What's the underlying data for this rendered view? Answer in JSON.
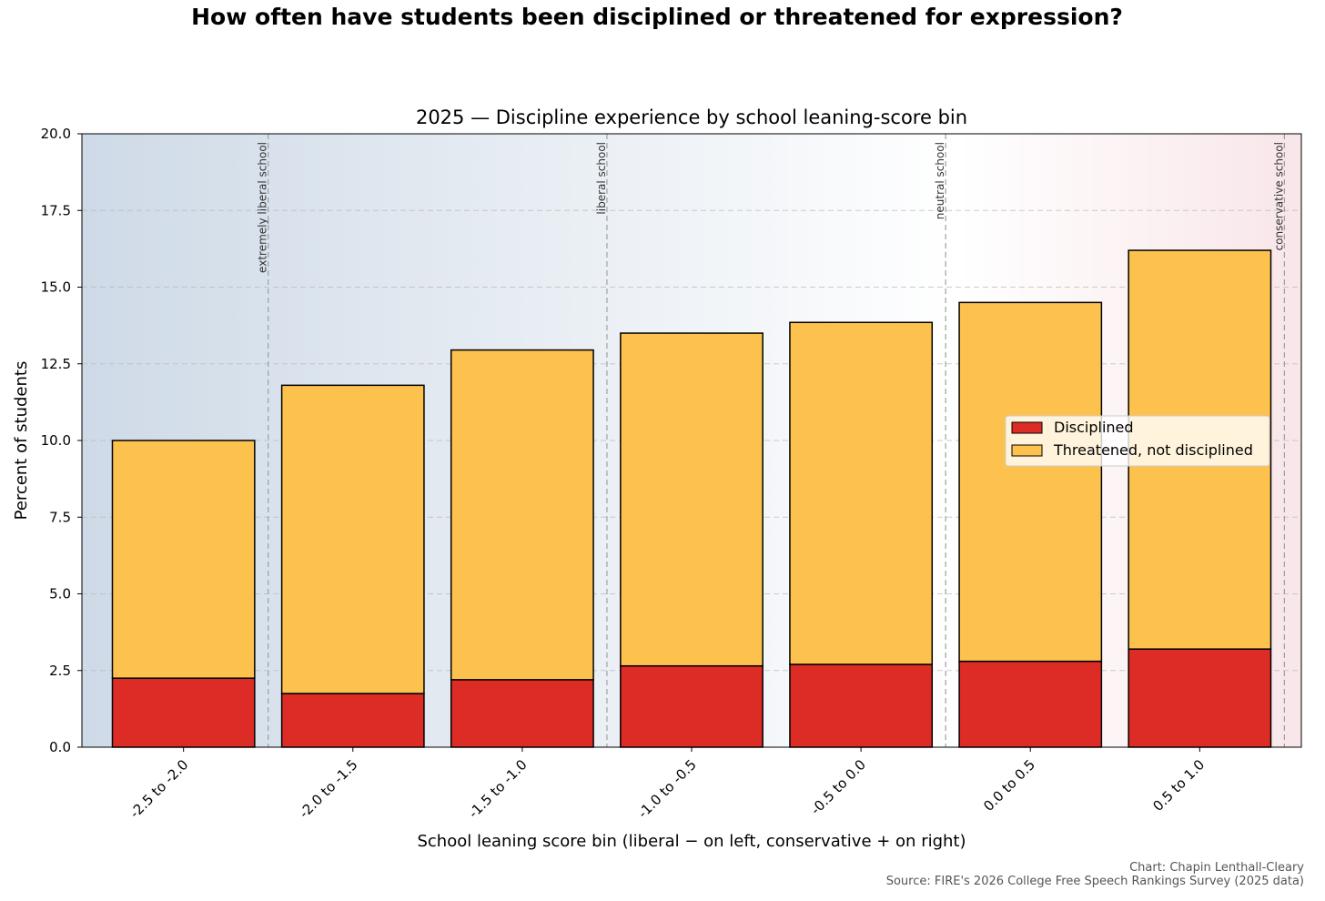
{
  "chart_data": {
    "type": "bar",
    "stacked": true,
    "suptitle": "How often have students been disciplined or threatened for expression?",
    "title": "2025 — Discipline experience by school leaning-score bin",
    "xlabel": "School leaning score bin (liberal − on left, conservative + on right)",
    "ylabel": "Percent of students",
    "ylim": [
      0,
      20
    ],
    "yticks": [
      0,
      2.5,
      5,
      7.5,
      10,
      12.5,
      15,
      17.5,
      20
    ],
    "ytick_labels": [
      "0.0",
      "2.5",
      "5.0",
      "7.5",
      "10.0",
      "12.5",
      "15.0",
      "17.5",
      "20.0"
    ],
    "categories": [
      "-2.5 to -2.0",
      "-2.0 to -1.5",
      "-1.5 to -1.0",
      "-1.0 to -0.5",
      "-0.5 to 0.0",
      "0.0 to 0.5",
      "0.5 to 1.0"
    ],
    "series": [
      {
        "name": "Disciplined",
        "color": "#dd2c26",
        "values": [
          2.25,
          1.75,
          2.2,
          2.65,
          2.7,
          2.8,
          3.2
        ]
      },
      {
        "name": "Threatened, not disciplined",
        "color": "#fdc24e",
        "values": [
          7.75,
          10.05,
          10.75,
          10.85,
          11.15,
          11.7,
          13.0
        ]
      }
    ],
    "reference_lines": [
      {
        "label": "extremely liberal school",
        "category_offset": 0.5
      },
      {
        "label": "liberal school",
        "category_offset": 2.5
      },
      {
        "label": "neutral school",
        "category_offset": 4.5
      },
      {
        "label": "conservative school",
        "category_offset": 6.5
      }
    ],
    "legend_position": "center-right",
    "grid": true,
    "background_gradient": [
      "#cedae7",
      "#ffffff",
      "#f8e6e9"
    ],
    "credit": "Chart: Chapin Lenthall-Cleary",
    "source": "Source: FIRE's 2026 College Free Speech Rankings Survey (2025 data)"
  }
}
